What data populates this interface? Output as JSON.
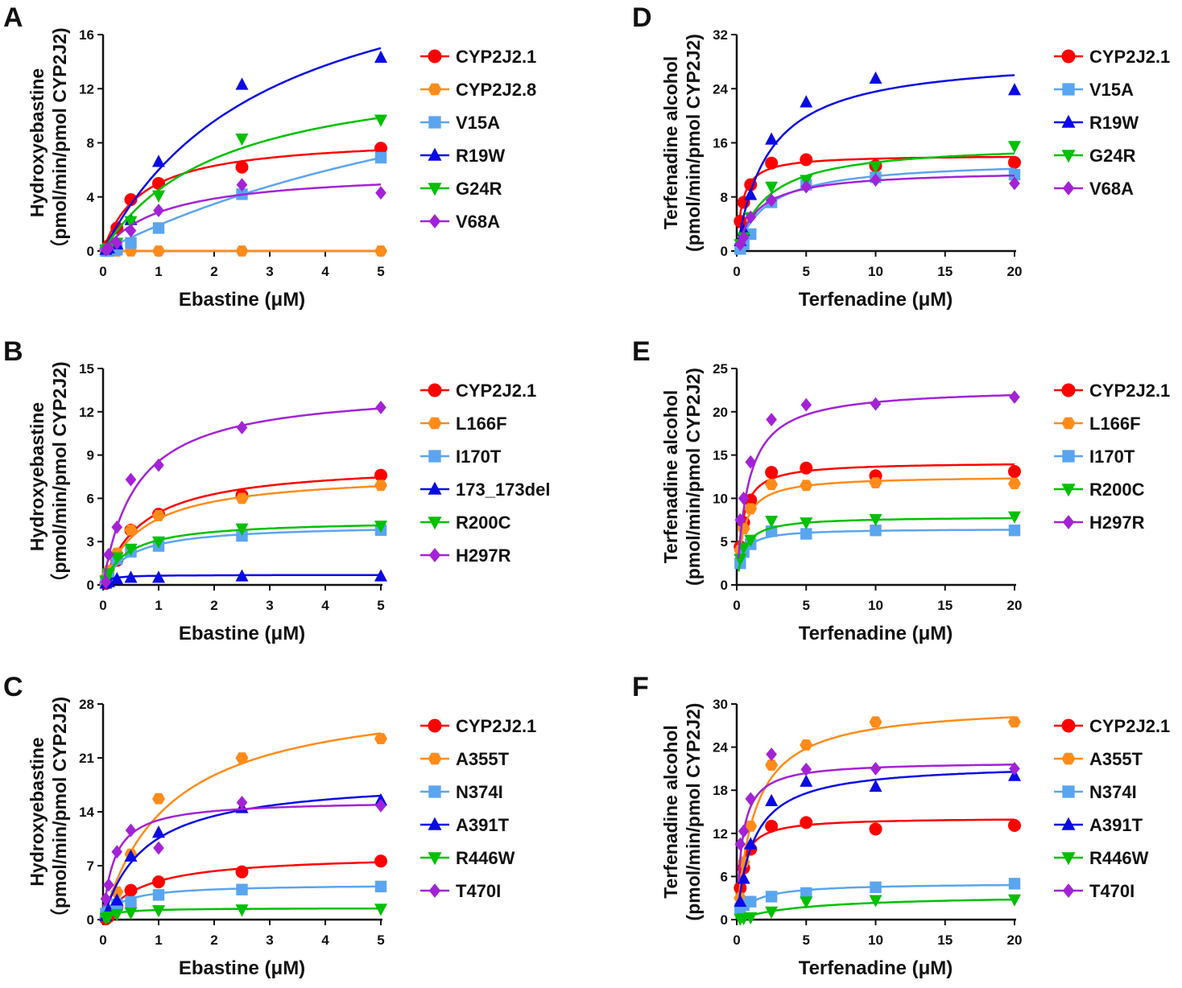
{
  "colors": {
    "CYP2J2.1": "#ff0000",
    "CYP2J2.8": "#ff8c1a",
    "orange": "#ff8c1a",
    "lightblue": "#5aa5f0",
    "blue": "#0a0ae6",
    "green": "#00c000",
    "purple": "#a322d6"
  },
  "chart_data": [
    {
      "panel": "A",
      "type": "scatter",
      "xlabel": "Ebastine (μM)",
      "ylabel": [
        "Hydroxyebastine",
        "（pmol/min/pmol CYP2J2)"
      ],
      "xlim": [
        0,
        5
      ],
      "ylim": [
        0,
        16
      ],
      "xticks": [
        0,
        1,
        2,
        3,
        4,
        5
      ],
      "yticks": [
        0,
        4,
        8,
        12,
        16
      ],
      "legend": "right",
      "x": [
        0.05,
        0.1,
        0.25,
        0.5,
        1,
        2.5,
        5
      ],
      "series": [
        {
          "name": "CYP2J2.1",
          "color": "#ff0000",
          "marker": "circle",
          "values": [
            0.1,
            0.4,
            1.7,
            3.8,
            5.0,
            6.2,
            7.6
          ],
          "fit": {
            "vmax": 8.5,
            "km": 0.7
          }
        },
        {
          "name": "CYP2J2.8",
          "color": "#ff8c1a",
          "marker": "hexagon",
          "values": [
            0,
            0,
            0,
            0,
            0,
            0,
            0
          ],
          "fit": {
            "vmax": 0,
            "km": 1
          }
        },
        {
          "name": "V15A",
          "color": "#5aa5f0",
          "marker": "square",
          "values": [
            0,
            0,
            0.1,
            0.6,
            1.7,
            4.2,
            6.9
          ],
          "fit": {
            "vmax": 20,
            "km": 9.5
          }
        },
        {
          "name": "R19W",
          "color": "#0a0ae6",
          "marker": "triangle-up",
          "values": [
            0.1,
            0.2,
            0.5,
            2.3,
            6.6,
            12.3,
            14.3
          ],
          "fit": {
            "vmax": 24,
            "km": 3
          }
        },
        {
          "name": "G24R",
          "color": "#00c000",
          "marker": "triangle-down",
          "values": [
            0.1,
            0.2,
            0.6,
            2.2,
            4.1,
            8.3,
            9.7
          ],
          "fit": {
            "vmax": 14,
            "km": 2.1
          }
        },
        {
          "name": "V68A",
          "color": "#a322d6",
          "marker": "diamond",
          "values": [
            0.1,
            0.2,
            0.6,
            1.5,
            3.0,
            4.9,
            4.3
          ],
          "fit": {
            "vmax": 6,
            "km": 1.1
          }
        }
      ]
    },
    {
      "panel": "B",
      "type": "scatter",
      "xlabel": "Ebastine (μM)",
      "ylabel": [
        "Hydroxyebastine",
        "（pmol/min/pmol CYP2J2)"
      ],
      "xlim": [
        0,
        5
      ],
      "ylim": [
        0,
        15
      ],
      "xticks": [
        0,
        1,
        2,
        3,
        4,
        5
      ],
      "yticks": [
        0,
        3,
        6,
        9,
        12,
        15
      ],
      "legend": "right",
      "x": [
        0.05,
        0.1,
        0.25,
        0.5,
        1,
        2.5,
        5
      ],
      "series": [
        {
          "name": "CYP2J2.1",
          "color": "#ff0000",
          "marker": "circle",
          "values": [
            0.1,
            0.4,
            1.7,
            3.8,
            4.9,
            6.2,
            7.6
          ],
          "fit": {
            "vmax": 8.5,
            "km": 0.7
          }
        },
        {
          "name": "L166F",
          "color": "#ff8c1a",
          "marker": "hexagon",
          "values": [
            0.5,
            1.0,
            2.2,
            3.8,
            4.8,
            6.0,
            6.9
          ],
          "fit": {
            "vmax": 7.8,
            "km": 0.7
          }
        },
        {
          "name": "I170T",
          "color": "#5aa5f0",
          "marker": "square",
          "values": [
            0.2,
            0.5,
            1.8,
            2.3,
            2.7,
            3.4,
            3.8
          ],
          "fit": {
            "vmax": 4.2,
            "km": 0.5
          }
        },
        {
          "name": "173_173del",
          "color": "#0a0ae6",
          "marker": "triangle-up",
          "values": [
            0.1,
            0.2,
            0.4,
            0.5,
            0.5,
            0.6,
            0.6
          ],
          "fit": {
            "vmax": 0.7,
            "km": 0.1
          }
        },
        {
          "name": "R200C",
          "color": "#00c000",
          "marker": "triangle-down",
          "values": [
            0.3,
            0.8,
            1.9,
            2.5,
            3.0,
            3.9,
            4.1
          ],
          "fit": {
            "vmax": 4.5,
            "km": 0.45
          }
        },
        {
          "name": "H297R",
          "color": "#a322d6",
          "marker": "diamond",
          "values": [
            0.2,
            2.1,
            4.0,
            7.3,
            8.3,
            10.9,
            12.3
          ],
          "fit": {
            "vmax": 13.7,
            "km": 0.6
          }
        }
      ]
    },
    {
      "panel": "C",
      "type": "scatter",
      "xlabel": "Ebastine (μM)",
      "ylabel": [
        "Hydroxyebastine",
        "（pmol/min/pmol CYP2J2)"
      ],
      "xlim": [
        0,
        5
      ],
      "ylim": [
        0,
        28
      ],
      "xticks": [
        0,
        1,
        2,
        3,
        4,
        5
      ],
      "yticks": [
        0,
        7,
        14,
        21,
        28
      ],
      "legend": "right",
      "x": [
        0.05,
        0.1,
        0.25,
        0.5,
        1,
        2.5,
        5
      ],
      "series": [
        {
          "name": "CYP2J2.1",
          "color": "#ff0000",
          "marker": "circle",
          "values": [
            0.1,
            0.4,
            1.7,
            3.8,
            4.9,
            6.2,
            7.6
          ],
          "fit": {
            "vmax": 8.5,
            "km": 0.7
          }
        },
        {
          "name": "A355T",
          "color": "#ff8c1a",
          "marker": "hexagon",
          "values": [
            0.5,
            1.2,
            3.6,
            8.5,
            15.7,
            21.0,
            23.5
          ],
          "fit": {
            "vmax": 30,
            "km": 1.2
          }
        },
        {
          "name": "N374I",
          "color": "#5aa5f0",
          "marker": "square",
          "values": [
            0.8,
            1.2,
            2.0,
            2.3,
            3.2,
            3.9,
            4.3
          ],
          "fit": {
            "vmax": 4.6,
            "km": 0.35
          }
        },
        {
          "name": "A391T",
          "color": "#0a0ae6",
          "marker": "triangle-up",
          "values": [
            0.5,
            1.2,
            2.5,
            8.2,
            11.3,
            14.5,
            15.5
          ],
          "fit": {
            "vmax": 18.5,
            "km": 0.75
          }
        },
        {
          "name": "R446W",
          "color": "#00c000",
          "marker": "triangle-down",
          "values": [
            0.2,
            0.4,
            0.7,
            0.9,
            1.2,
            1.3,
            1.4
          ],
          "fit": {
            "vmax": 1.5,
            "km": 0.2
          }
        },
        {
          "name": "T470I",
          "color": "#a322d6",
          "marker": "diamond",
          "values": [
            2.7,
            4.5,
            8.8,
            11.6,
            9.3,
            15.2,
            14.8
          ],
          "fit": {
            "vmax": 15.5,
            "km": 0.2
          }
        }
      ]
    },
    {
      "panel": "D",
      "type": "scatter",
      "xlabel": "Terfenadine (μM)",
      "ylabel": [
        "Terfenadine alcohol",
        "(pmol/min/pmol CYP2J2)"
      ],
      "xlim": [
        0,
        20
      ],
      "ylim": [
        0,
        32
      ],
      "xticks": [
        0,
        5,
        10,
        15,
        20
      ],
      "yticks": [
        0,
        8,
        16,
        24,
        32
      ],
      "legend": "right",
      "x": [
        0.25,
        0.5,
        1,
        2.5,
        5,
        10,
        20
      ],
      "series": [
        {
          "name": "CYP2J2.1",
          "color": "#ff0000",
          "marker": "circle",
          "values": [
            4.4,
            7.2,
            9.8,
            13.0,
            13.5,
            12.6,
            13.1
          ],
          "fit": {
            "vmax": 14.2,
            "km": 0.4
          }
        },
        {
          "name": "V15A",
          "color": "#5aa5f0",
          "marker": "square",
          "values": [
            0.3,
            1.0,
            2.5,
            7.2,
            9.8,
            10.9,
            11.3
          ],
          "fit": {
            "vmax": 13.5,
            "km": 2.2
          }
        },
        {
          "name": "R19W",
          "color": "#0a0ae6",
          "marker": "triangle-up",
          "values": [
            1.5,
            3.0,
            8.3,
            16.5,
            22.0,
            25.5,
            23.8
          ],
          "fit": {
            "vmax": 29,
            "km": 2.3
          }
        },
        {
          "name": "G24R",
          "color": "#00c000",
          "marker": "triangle-down",
          "values": [
            1.0,
            2.0,
            5.0,
            9.5,
            10.5,
            12.5,
            15.5
          ],
          "fit": {
            "vmax": 16,
            "km": 2.2
          }
        },
        {
          "name": "V68A",
          "color": "#a322d6",
          "marker": "diamond",
          "values": [
            1.0,
            2.0,
            5.0,
            7.5,
            9.5,
            10.5,
            10.0
          ],
          "fit": {
            "vmax": 12,
            "km": 1.5
          }
        }
      ]
    },
    {
      "panel": "E",
      "type": "scatter",
      "xlabel": "Terfenadine (μM)",
      "ylabel": [
        "Terfenadine alcohol",
        "(pmol/min/pmol CYP2J2)"
      ],
      "xlim": [
        0,
        20
      ],
      "ylim": [
        0,
        25
      ],
      "xticks": [
        0,
        5,
        10,
        15,
        20
      ],
      "yticks": [
        0,
        5,
        10,
        15,
        20,
        25
      ],
      "legend": "right",
      "x": [
        0.25,
        0.5,
        1,
        2.5,
        5,
        10,
        20
      ],
      "series": [
        {
          "name": "CYP2J2.1",
          "color": "#ff0000",
          "marker": "circle",
          "values": [
            4.4,
            7.2,
            9.8,
            13.0,
            13.5,
            12.6,
            13.1
          ],
          "fit": {
            "vmax": 14.2,
            "km": 0.4
          }
        },
        {
          "name": "L166F",
          "color": "#ff8c1a",
          "marker": "hexagon",
          "values": [
            4.0,
            6.5,
            8.8,
            11.6,
            11.5,
            11.8,
            11.7
          ],
          "fit": {
            "vmax": 12.6,
            "km": 0.5
          }
        },
        {
          "name": "I170T",
          "color": "#5aa5f0",
          "marker": "square",
          "values": [
            2.5,
            3.8,
            4.7,
            6.2,
            5.9,
            6.3,
            6.3
          ],
          "fit": {
            "vmax": 6.5,
            "km": 0.4
          }
        },
        {
          "name": "R200C",
          "color": "#00c000",
          "marker": "triangle-down",
          "values": [
            3.0,
            4.3,
            5.2,
            7.4,
            7.2,
            7.6,
            7.9
          ],
          "fit": {
            "vmax": 7.9,
            "km": 0.5
          }
        },
        {
          "name": "H297R",
          "color": "#a322d6",
          "marker": "diamond",
          "values": [
            7.5,
            10.0,
            14.2,
            19.1,
            20.8,
            20.9,
            21.7
          ],
          "fit": {
            "vmax": 22.8,
            "km": 0.8
          }
        }
      ]
    },
    {
      "panel": "F",
      "type": "scatter",
      "xlabel": "Terfenadine (μM)",
      "ylabel": [
        "Terfenadine alcohol",
        "(pmol/min/pmol CYP2J2)"
      ],
      "xlim": [
        0,
        20
      ],
      "ylim": [
        0,
        30
      ],
      "xticks": [
        0,
        5,
        10,
        15,
        20
      ],
      "yticks": [
        0,
        6,
        12,
        18,
        24,
        30
      ],
      "legend": "right",
      "x": [
        0.25,
        0.5,
        1,
        2.5,
        5,
        10,
        20
      ],
      "series": [
        {
          "name": "CYP2J2.1",
          "color": "#ff0000",
          "marker": "circle",
          "values": [
            4.4,
            7.2,
            9.8,
            13.0,
            13.5,
            12.6,
            13.1
          ],
          "fit": {
            "vmax": 14.2,
            "km": 0.4
          }
        },
        {
          "name": "A355T",
          "color": "#ff8c1a",
          "marker": "hexagon",
          "values": [
            3.0,
            8.0,
            13.0,
            21.5,
            24.3,
            27.5,
            27.5
          ],
          "fit": {
            "vmax": 30,
            "km": 1.3
          }
        },
        {
          "name": "N374I",
          "color": "#5aa5f0",
          "marker": "square",
          "values": [
            1.5,
            2.0,
            2.5,
            3.2,
            3.7,
            4.5,
            5.0
          ],
          "fit": {
            "vmax": 5.1,
            "km": 1.2
          }
        },
        {
          "name": "A391T",
          "color": "#0a0ae6",
          "marker": "triangle-up",
          "values": [
            2.5,
            5.7,
            10.5,
            16.5,
            19.2,
            18.5,
            20.0
          ],
          "fit": {
            "vmax": 21.8,
            "km": 1.2
          }
        },
        {
          "name": "R446W",
          "color": "#00c000",
          "marker": "triangle-down",
          "values": [
            0.1,
            0.2,
            0.3,
            1.1,
            2.5,
            2.7,
            2.8
          ],
          "fit": {
            "vmax": 3.5,
            "km": 5
          }
        },
        {
          "name": "T470I",
          "color": "#a322d6",
          "marker": "diamond",
          "values": [
            10.5,
            12.3,
            16.8,
            23.0,
            20.9,
            21.0,
            21.0
          ],
          "fit": {
            "vmax": 22,
            "km": 0.4
          }
        }
      ]
    }
  ]
}
